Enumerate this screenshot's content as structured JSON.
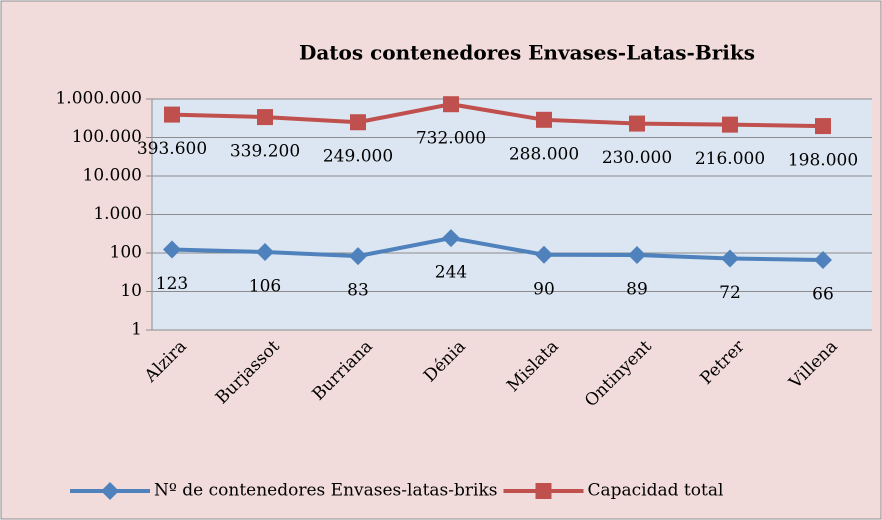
{
  "chart_data": {
    "type": "line",
    "title": "Datos contenedores Envases-Latas-Briks",
    "categories": [
      "Alzira",
      "Burjassot",
      "Burriana",
      "Dénia",
      "Mislata",
      "Ontinyent",
      "Petrer",
      "Villena"
    ],
    "series": [
      {
        "name": "Nº de contenedores Envases-latas-briks",
        "color": "#4f81bd",
        "marker": "diamond",
        "values": [
          123,
          106,
          83,
          244,
          90,
          89,
          72,
          66
        ]
      },
      {
        "name": "Capacidad total",
        "color": "#c0504d",
        "marker": "square",
        "values": [
          393600,
          339200,
          249000,
          732000,
          288000,
          230000,
          216000,
          198000
        ],
        "value_labels": [
          "393.600",
          "339.200",
          "249.000",
          "732.000",
          "288.000",
          "230.000",
          "216.000",
          "198.000"
        ]
      }
    ],
    "ylim": [
      1,
      1000000
    ],
    "log_scale": true,
    "yticks": [
      1,
      10,
      100,
      {
        "value": 1000,
        "label": "1.000"
      },
      {
        "value": 10000,
        "label": "10.000"
      },
      {
        "value": 100000,
        "label": "100.000"
      },
      {
        "value": 1000000,
        "label": "1.000.000"
      }
    ],
    "grid": true,
    "legend": "bottom"
  }
}
